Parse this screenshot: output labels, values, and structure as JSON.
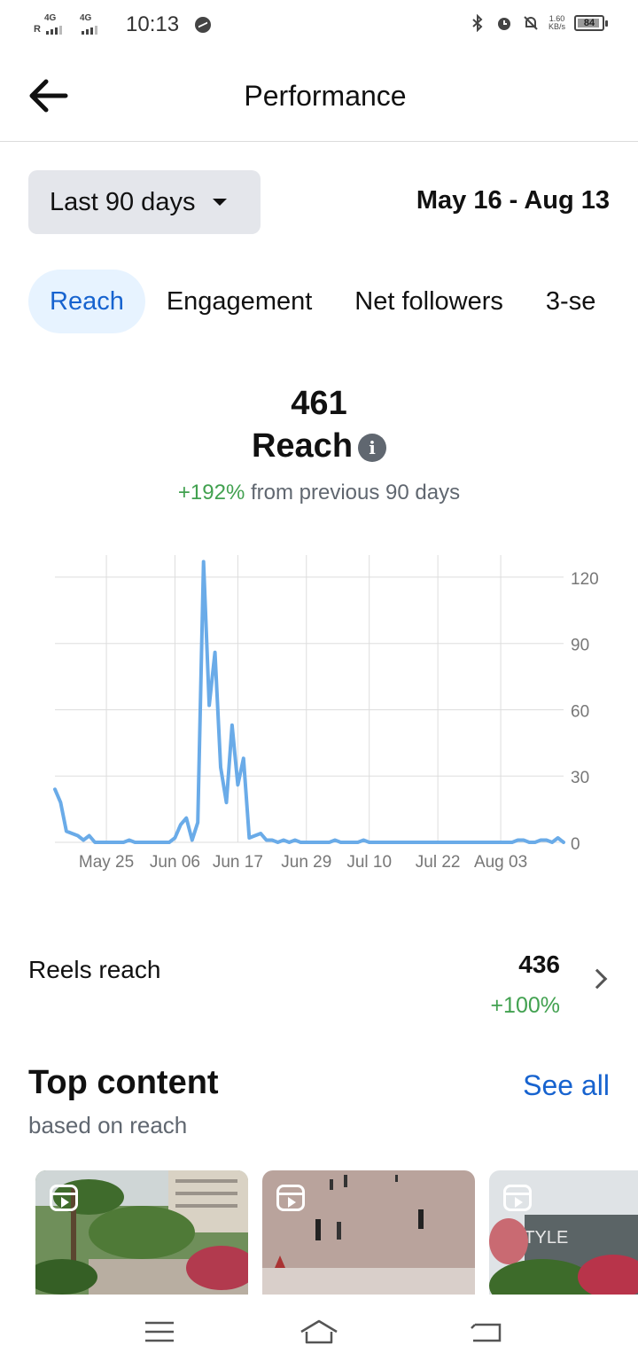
{
  "status_bar": {
    "net1": "4G",
    "roaming": "R",
    "net2": "4G",
    "time": "10:13",
    "speed_value": "1.60",
    "speed_unit": "KB/s",
    "battery": "84"
  },
  "header": {
    "title": "Performance"
  },
  "filters": {
    "range_label": "Last 90 days",
    "date_range": "May 16 - Aug 13"
  },
  "tabs": [
    "Reach",
    "Engagement",
    "Net followers",
    "3-se"
  ],
  "summary": {
    "value": "461",
    "label": "Reach",
    "change_pct": "+192%",
    "change_text": "from previous 90 days"
  },
  "chart_data": {
    "type": "line",
    "title": "",
    "xlabel": "",
    "ylabel": "",
    "x_ticks": [
      "May 25",
      "Jun 06",
      "Jun 17",
      "Jun 29",
      "Jul 10",
      "Jul 22",
      "Aug 03"
    ],
    "y_ticks": [
      0,
      30,
      60,
      90,
      120
    ],
    "ylim": [
      0,
      130
    ],
    "grid": true,
    "y_axis_side": "right",
    "color": "#6aabe8",
    "series": [
      {
        "values": [
          24,
          18,
          5,
          4,
          3,
          1,
          3,
          0,
          0,
          0,
          0,
          0,
          0,
          1,
          0,
          0,
          0,
          0,
          0,
          0,
          0,
          2,
          8,
          11,
          1,
          9,
          127,
          62,
          86,
          34,
          18,
          53,
          26,
          38,
          2,
          3,
          4,
          1,
          1,
          0,
          1,
          0,
          1,
          0,
          0,
          0,
          0,
          0,
          0,
          1,
          0,
          0,
          0,
          0,
          1,
          0,
          0,
          0,
          0,
          0,
          0,
          0,
          0,
          0,
          0,
          0,
          0,
          0,
          0,
          0,
          0,
          0,
          0,
          0,
          0,
          0,
          0,
          0,
          0,
          0,
          0,
          1,
          1,
          0,
          0,
          1,
          1,
          0,
          2,
          0
        ]
      }
    ]
  },
  "reels": {
    "label": "Reels reach",
    "value": "436",
    "change": "+100%"
  },
  "top_content": {
    "title": "Top content",
    "subtitle": "based on reach",
    "see_all": "See all",
    "thumb2_text": "STYLE"
  }
}
